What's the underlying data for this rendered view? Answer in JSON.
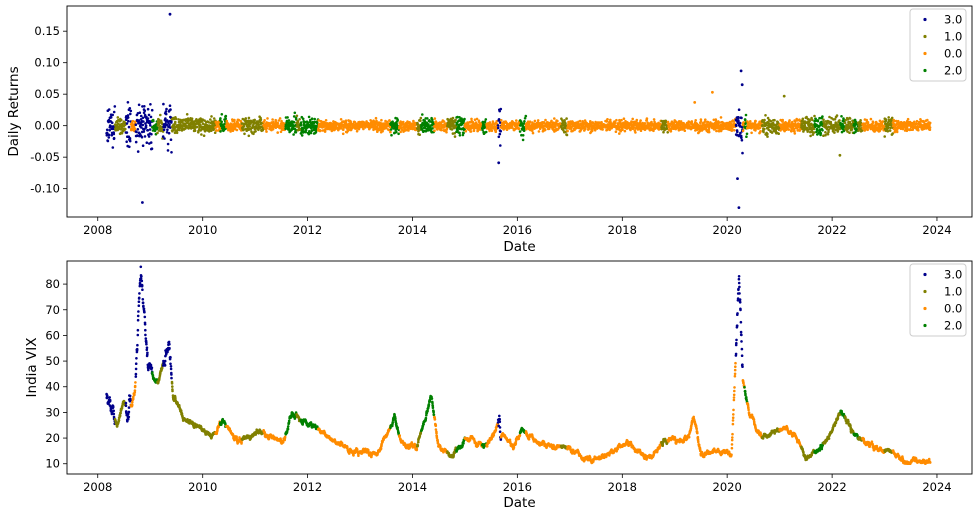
{
  "chart_data": [
    {
      "type": "scatter",
      "xlabel": "Date",
      "ylabel": "Daily Returns",
      "xlim": [
        "2007-06-01",
        "2024-09-01"
      ],
      "ylim": [
        -0.145,
        0.19
      ],
      "x_ticks": [
        "2008",
        "2010",
        "2012",
        "2014",
        "2016",
        "2018",
        "2020",
        "2022",
        "2024"
      ],
      "y_ticks": [
        "0.15",
        "0.10",
        "0.05",
        "0.00",
        "-0.05",
        "-0.10"
      ],
      "grid": false,
      "legend_position": "top-right",
      "series": [
        {
          "name": "3.0",
          "color": "#00008b"
        },
        {
          "name": "1.0",
          "color": "#808000"
        },
        {
          "name": "0.0",
          "color": "#ff8c00"
        },
        {
          "name": "2.0",
          "color": "#008000"
        }
      ]
    },
    {
      "type": "scatter",
      "xlabel": "Date",
      "ylabel": "India VIX",
      "xlim": [
        "2007-06-01",
        "2024-09-01"
      ],
      "ylim": [
        6,
        89
      ],
      "x_ticks": [
        "2008",
        "2010",
        "2012",
        "2014",
        "2016",
        "2018",
        "2020",
        "2022",
        "2024"
      ],
      "y_ticks": [
        "80",
        "70",
        "60",
        "50",
        "40",
        "30",
        "20",
        "10"
      ],
      "grid": false,
      "legend_position": "top-right",
      "series": [
        {
          "name": "3.0",
          "color": "#00008b"
        },
        {
          "name": "1.0",
          "color": "#808000"
        },
        {
          "name": "0.0",
          "color": "#ff8c00"
        },
        {
          "name": "2.0",
          "color": "#008000"
        }
      ]
    }
  ],
  "regimes": [
    [
      "2008-03-01",
      3
    ],
    [
      "2008-05-01",
      1
    ],
    [
      "2008-07-15",
      3
    ],
    [
      "2008-08-20",
      0
    ],
    [
      "2008-09-20",
      3
    ],
    [
      "2009-01-15",
      2
    ],
    [
      "2009-02-20",
      1
    ],
    [
      "2009-04-01",
      3
    ],
    [
      "2009-06-01",
      1
    ],
    [
      "2010-04-01",
      0
    ],
    [
      "2010-05-01",
      2
    ],
    [
      "2010-06-15",
      0
    ],
    [
      "2010-10-01",
      1
    ],
    [
      "2011-03-01",
      0
    ],
    [
      "2011-08-01",
      2
    ],
    [
      "2011-10-15",
      1
    ],
    [
      "2011-11-15",
      2
    ],
    [
      "2012-03-15",
      0
    ],
    [
      "2013-08-01",
      2
    ],
    [
      "2013-10-01",
      0
    ],
    [
      "2014-02-01",
      1
    ],
    [
      "2014-03-01",
      2
    ],
    [
      "2014-06-01",
      0
    ],
    [
      "2014-09-01",
      1
    ],
    [
      "2014-11-01",
      2
    ],
    [
      "2015-01-01",
      0
    ],
    [
      "2015-05-01",
      2
    ],
    [
      "2015-06-01",
      0
    ],
    [
      "2015-08-20",
      3
    ],
    [
      "2015-09-10",
      0
    ],
    [
      "2016-01-20",
      2
    ],
    [
      "2016-03-01",
      0
    ],
    [
      "2016-11-01",
      1
    ],
    [
      "2016-12-15",
      0
    ],
    [
      "2018-10-01",
      1
    ],
    [
      "2018-11-15",
      0
    ],
    [
      "2020-03-01",
      3
    ],
    [
      "2020-04-20",
      0
    ],
    [
      "2020-05-01",
      2
    ],
    [
      "2020-05-20",
      0
    ],
    [
      "2020-09-01",
      1
    ],
    [
      "2021-01-01",
      0
    ],
    [
      "2021-06-01",
      1
    ],
    [
      "2021-09-01",
      2
    ],
    [
      "2021-11-01",
      1
    ],
    [
      "2022-03-01",
      2
    ],
    [
      "2022-04-01",
      1
    ],
    [
      "2022-06-01",
      2
    ],
    [
      "2022-07-01",
      1
    ],
    [
      "2022-08-01",
      0
    ],
    [
      "2023-01-01",
      1
    ],
    [
      "2023-03-01",
      0
    ],
    [
      "2023-11-15",
      0
    ]
  ],
  "vix_path": [
    [
      "2008-03-01",
      36
    ],
    [
      "2008-05-15",
      25
    ],
    [
      "2008-07-01",
      33
    ],
    [
      "2008-08-25",
      33
    ],
    [
      "2008-09-15",
      38
    ],
    [
      "2008-10-27",
      85
    ],
    [
      "2008-12-15",
      52
    ],
    [
      "2009-01-20",
      43
    ],
    [
      "2009-03-01",
      42
    ],
    [
      "2009-05-10",
      58
    ],
    [
      "2009-06-10",
      38
    ],
    [
      "2009-09-01",
      27
    ],
    [
      "2010-01-01",
      24
    ],
    [
      "2010-03-01",
      20
    ],
    [
      "2010-05-20",
      27
    ],
    [
      "2010-09-01",
      19
    ],
    [
      "2011-02-01",
      23
    ],
    [
      "2011-07-15",
      18
    ],
    [
      "2011-09-15",
      30
    ],
    [
      "2011-12-15",
      26
    ],
    [
      "2012-03-01",
      24
    ],
    [
      "2012-07-01",
      19
    ],
    [
      "2012-12-01",
      15
    ],
    [
      "2013-05-01",
      14
    ],
    [
      "2013-08-28",
      28
    ],
    [
      "2013-10-15",
      18
    ],
    [
      "2014-02-01",
      16
    ],
    [
      "2014-05-10",
      37
    ],
    [
      "2014-07-01",
      17
    ],
    [
      "2014-10-01",
      13
    ],
    [
      "2015-01-15",
      20
    ],
    [
      "2015-06-01",
      17
    ],
    [
      "2015-08-25",
      25
    ],
    [
      "2015-12-01",
      17
    ],
    [
      "2016-02-10",
      24
    ],
    [
      "2016-06-01",
      17
    ],
    [
      "2016-11-15",
      17
    ],
    [
      "2017-06-01",
      11
    ],
    [
      "2018-02-10",
      18
    ],
    [
      "2018-07-01",
      12
    ],
    [
      "2018-10-25",
      19
    ],
    [
      "2019-04-01",
      20
    ],
    [
      "2019-05-15",
      28
    ],
    [
      "2019-07-01",
      14
    ],
    [
      "2020-02-01",
      14
    ],
    [
      "2020-03-24",
      83
    ],
    [
      "2020-04-20",
      42
    ],
    [
      "2020-06-01",
      30
    ],
    [
      "2020-09-01",
      20
    ],
    [
      "2021-02-01",
      24
    ],
    [
      "2021-05-01",
      20
    ],
    [
      "2021-07-01",
      12
    ],
    [
      "2021-11-01",
      17
    ],
    [
      "2022-03-07",
      31
    ],
    [
      "2022-05-20",
      23
    ],
    [
      "2022-09-01",
      18
    ],
    [
      "2022-11-15",
      16
    ],
    [
      "2023-03-01",
      14
    ],
    [
      "2023-05-01",
      11
    ],
    [
      "2023-11-15",
      11
    ]
  ],
  "notable_returns": [
    [
      "2008-11-07",
      -0.122,
      3
    ],
    [
      "2009-05-18",
      0.177,
      3
    ],
    [
      "2015-08-24",
      -0.059,
      3
    ],
    [
      "2020-03-23",
      -0.13,
      3
    ],
    [
      "2020-03-13",
      -0.084,
      3
    ],
    [
      "2020-04-07",
      0.087,
      3
    ],
    [
      "2020-04-15",
      0.065,
      3
    ],
    [
      "2019-05-20",
      0.037,
      0
    ],
    [
      "2019-09-20",
      0.053,
      0
    ],
    [
      "2021-02-01",
      0.047,
      1
    ],
    [
      "2022-02-24",
      -0.047,
      1
    ]
  ]
}
